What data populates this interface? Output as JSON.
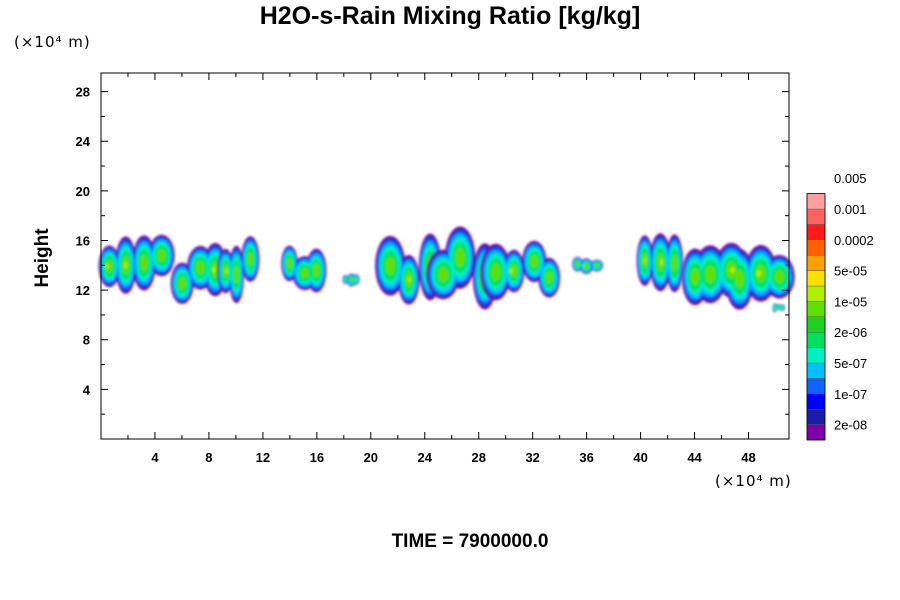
{
  "chart_data": {
    "type": "heatmap",
    "title": "H2O-s-Rain Mixing Ratio [kg/kg]",
    "ylabel": "Height",
    "xlabel": "",
    "x_unit": "(×10⁴ m)",
    "y_unit": "(×10⁴ m)",
    "footer": "TIME = 7900000.0",
    "xlim": [
      0,
      51
    ],
    "ylim": [
      0,
      29.5
    ],
    "x_ticks": [
      4,
      8,
      12,
      16,
      20,
      24,
      28,
      32,
      36,
      40,
      44,
      48
    ],
    "y_ticks": [
      4,
      8,
      12,
      16,
      20,
      24,
      28
    ],
    "grid": false,
    "colorbar": {
      "placement": "right",
      "levels": [
        "2e-08",
        "1e-07",
        "5e-07",
        "2e-06",
        "1e-05",
        "5e-05",
        "0.0002",
        "0.001",
        "0.005"
      ],
      "colors": [
        "#7f00aa",
        "#1c1caa",
        "#0000ff",
        "#0d64ff",
        "#00c0ff",
        "#00f0c0",
        "#00e060",
        "#20d020",
        "#60e000",
        "#b0f000",
        "#ffe000",
        "#ffa000",
        "#ff6000",
        "#ff1a1a",
        "#ff6060",
        "#ffa0a0"
      ]
    },
    "cloud_features": [
      {
        "x": [
          0,
          5
        ],
        "z": [
          12,
          16.5
        ]
      },
      {
        "x": [
          5,
          9
        ],
        "z": [
          11.5,
          15.5
        ]
      },
      {
        "x": [
          9,
          11.5
        ],
        "z": [
          12,
          16.5
        ]
      },
      {
        "x": [
          13.5,
          16.5
        ],
        "z": [
          12,
          15.5
        ]
      },
      {
        "x": [
          18,
          19
        ],
        "z": [
          12.5,
          13.5
        ]
      },
      {
        "x": [
          21,
          25
        ],
        "z": [
          11.5,
          16.5
        ]
      },
      {
        "x": [
          25,
          29
        ],
        "z": [
          11.5,
          16.8
        ]
      },
      {
        "x": [
          29,
          34
        ],
        "z": [
          11.5,
          16
        ]
      },
      {
        "x": [
          35,
          37
        ],
        "z": [
          13.5,
          14.7
        ]
      },
      {
        "x": [
          40,
          43
        ],
        "z": [
          12,
          16.5
        ]
      },
      {
        "x": [
          43,
          51
        ],
        "z": [
          11.5,
          16.8
        ]
      },
      {
        "x": [
          49.8,
          50.6
        ],
        "z": [
          10.2,
          10.9
        ]
      }
    ]
  }
}
